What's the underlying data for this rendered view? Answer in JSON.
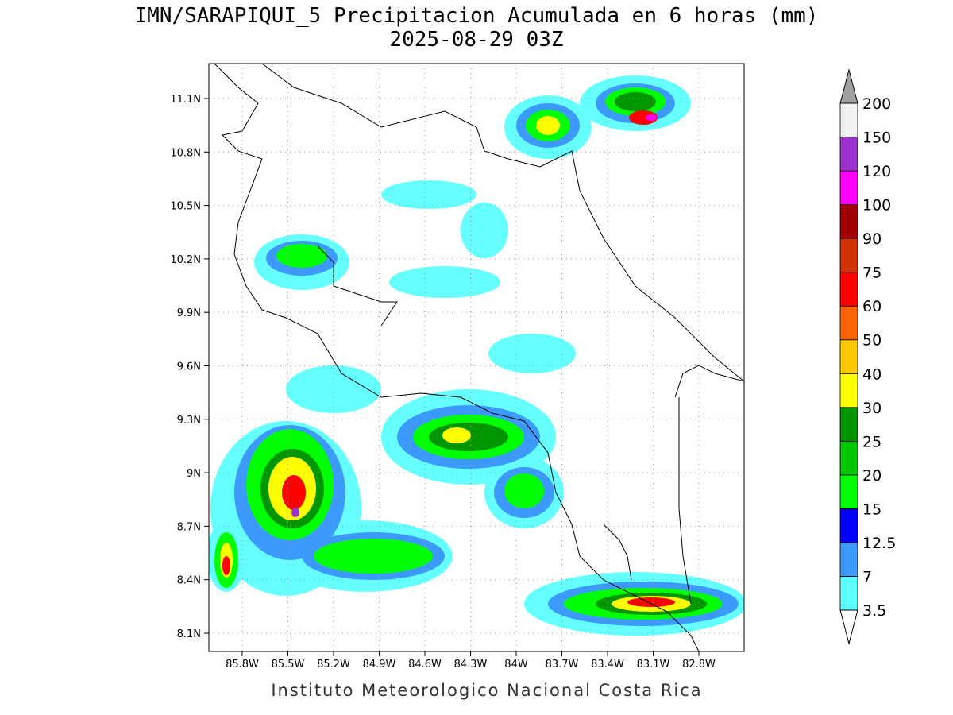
{
  "title": "IMN/SARAPIQUI_5 Precipitacion Acumulada en 6 horas (mm)",
  "subtitle": "2025-08-29 03Z",
  "map": {
    "x_ticks": [
      "85.8W",
      "85.5W",
      "85.2W",
      "84.9W",
      "84.6W",
      "84.3W",
      "84W",
      "83.7W",
      "83.4W",
      "83.1W",
      "82.8W"
    ],
    "y_ticks": [
      "11.1N",
      "10.8N",
      "10.5N",
      "10.2N",
      "9.9N",
      "9.6N",
      "9.3N",
      "9N",
      "8.7N",
      "8.4N",
      "8.1N"
    ]
  },
  "colorbar": {
    "levels": [
      3.5,
      7,
      12.5,
      15,
      20,
      25,
      30,
      40,
      50,
      60,
      75,
      90,
      100,
      120,
      150,
      200
    ],
    "colors": [
      "#5effff",
      "#3c9aff",
      "#0000ff",
      "#00ff00",
      "#00c800",
      "#009600",
      "#ffff00",
      "#ffc800",
      "#ff6400",
      "#ff0000",
      "#d23200",
      "#a00000",
      "#ff00ff",
      "#9b32cd",
      "#f0f0f0"
    ],
    "under_color": "#ffffff",
    "over_color": "#a0a0a0"
  },
  "footer": "Instituto Meteorologico Nacional Costa Rica"
}
